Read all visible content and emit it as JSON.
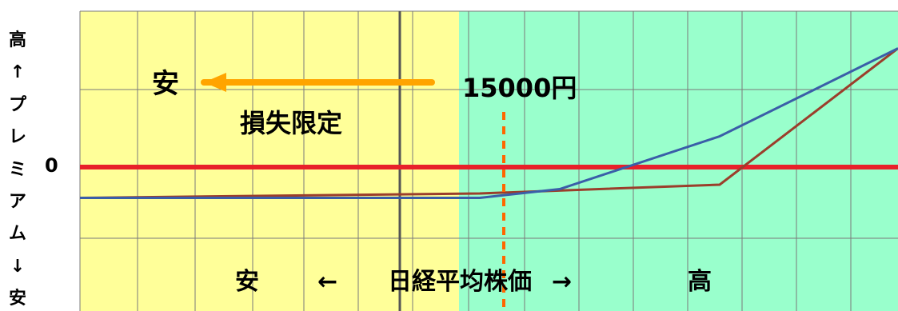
{
  "chart_data": {
    "type": "line",
    "title": "",
    "xlabel": "安 ← 日経平均株価 → 高",
    "ylabel": "高↑プレミアム↓安",
    "series": [
      {
        "values": [
          [
            0,
            -0.35
          ],
          [
            200,
            -0.33
          ],
          [
            500,
            -0.3
          ],
          [
            800,
            -0.2
          ],
          [
            1023,
            1.35
          ]
        ]
      },
      {
        "values": [
          [
            0,
            -0.35
          ],
          [
            300,
            -0.35
          ],
          [
            500,
            -0.35
          ],
          [
            600,
            -0.25
          ],
          [
            800,
            0.35
          ],
          [
            1023,
            1.35
          ]
        ]
      }
    ],
    "annotations": {
      "zero_label": "0",
      "strike_label": "15000円",
      "arrow_label": "安",
      "loss_label": "損失限定",
      "x_axis_left": "安",
      "x_axis_arrow_left": "←",
      "x_axis_center": "日経平均株価",
      "x_axis_arrow_right": "→",
      "x_axis_right": "高"
    },
    "yaxis_chars": [
      "高",
      "↑",
      "プ",
      "レ",
      "ミ",
      "ア",
      "ム",
      "↓",
      "安"
    ],
    "colors": {
      "loss_zone": "#ffff99",
      "gain_zone": "#99ffcc",
      "gridline": "#7a7a7a",
      "zero_line": "#e8202a",
      "strike_line": "#ff6600",
      "arrow": "#ffa400",
      "series_brown": "#9b3e2b",
      "series_blue": "#3a5ea8"
    }
  }
}
